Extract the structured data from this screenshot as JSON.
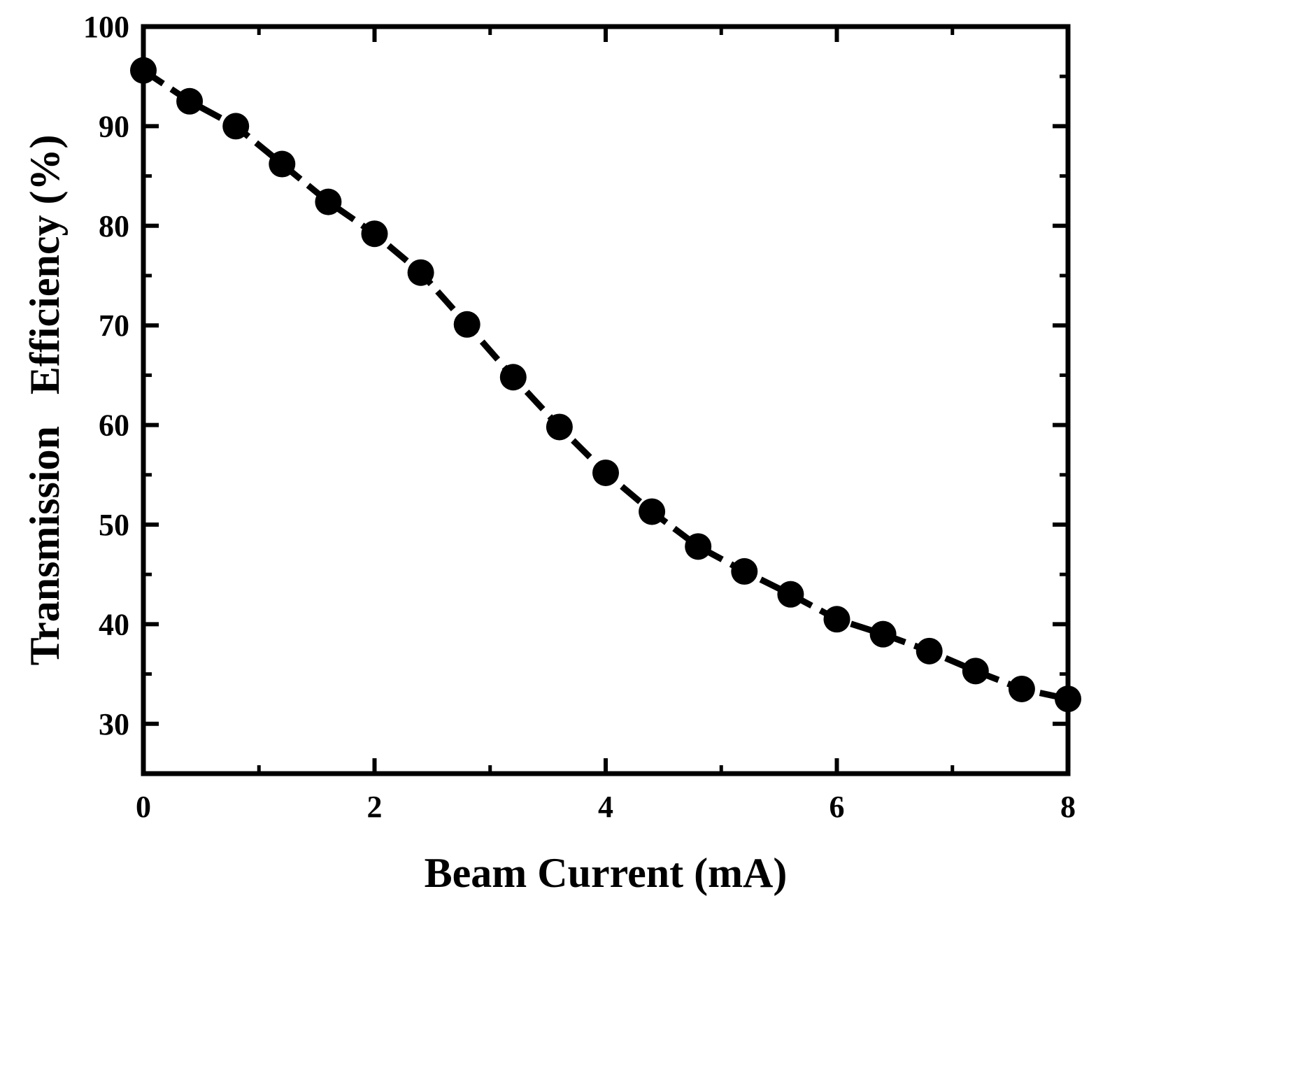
{
  "chart_data": {
    "type": "line",
    "xlabel": "Beam Current (mA)",
    "ylabel": "Transmission   Efficiency (%)",
    "xlim": [
      0,
      8
    ],
    "ylim": [
      25,
      100
    ],
    "x_ticks": [
      0,
      2,
      4,
      6,
      8
    ],
    "y_ticks": [
      30,
      40,
      50,
      60,
      70,
      80,
      90,
      100
    ],
    "x_minor_ticks": [
      1,
      3,
      5,
      7
    ],
    "y_minor_ticks": [
      35,
      45,
      55,
      65,
      75,
      85,
      95
    ],
    "grid": false,
    "line_style": "dashed",
    "marker": "circle",
    "color": "#000000",
    "x": [
      0,
      0.4,
      0.8,
      1.2,
      1.6,
      2.0,
      2.4,
      2.8,
      3.2,
      3.6,
      4.0,
      4.4,
      4.8,
      5.2,
      5.6,
      6.0,
      6.4,
      6.8,
      7.2,
      7.6,
      8.0
    ],
    "y": [
      95.6,
      92.5,
      90.0,
      86.2,
      82.4,
      79.2,
      75.3,
      70.1,
      64.8,
      59.8,
      55.2,
      51.3,
      47.8,
      45.3,
      43.0,
      40.5,
      39.0,
      37.3,
      35.3,
      33.5,
      32.5
    ]
  }
}
